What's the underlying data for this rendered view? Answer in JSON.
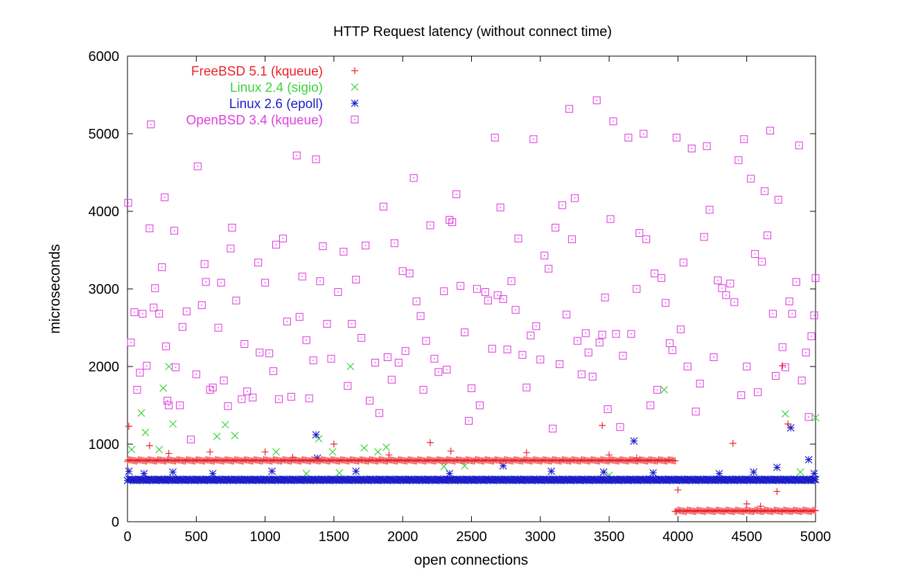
{
  "chart_data": {
    "type": "scatter",
    "title": "HTTP Request latency (without connect time)",
    "xlabel": "open connections",
    "ylabel": "microseconds",
    "xlim": [
      0,
      5000
    ],
    "ylim": [
      0,
      6000
    ],
    "xticks": [
      0,
      500,
      1000,
      1500,
      2000,
      2500,
      3000,
      3500,
      4000,
      4500,
      5000
    ],
    "yticks": [
      0,
      1000,
      2000,
      3000,
      4000,
      5000,
      6000
    ],
    "grid": false,
    "legend_position": "top-left",
    "series": [
      {
        "name": "FreeBSD 5.1 (kqueue)",
        "color": "#e8232a",
        "marker": "plus",
        "baseline_segments": [
          {
            "x_from": 0,
            "x_to": 3980,
            "y": 790
          },
          {
            "x_from": 3980,
            "x_to": 5000,
            "y": 140
          }
        ],
        "points": [
          [
            10,
            1230
          ],
          [
            160,
            980
          ],
          [
            300,
            880
          ],
          [
            600,
            900
          ],
          [
            1000,
            900
          ],
          [
            1200,
            830
          ],
          [
            1500,
            1000
          ],
          [
            1900,
            860
          ],
          [
            2200,
            1020
          ],
          [
            2350,
            910
          ],
          [
            2900,
            890
          ],
          [
            3450,
            1240
          ],
          [
            3500,
            860
          ],
          [
            3700,
            820
          ],
          [
            4000,
            410
          ],
          [
            4400,
            1010
          ],
          [
            4500,
            230
          ],
          [
            4600,
            200
          ],
          [
            4720,
            390
          ],
          [
            4760,
            2010
          ],
          [
            4800,
            1260
          ]
        ]
      },
      {
        "name": "Linux 2.4 (sigio)",
        "color": "#3ad33a",
        "marker": "cross",
        "baseline_segments": [
          {
            "x_from": 0,
            "x_to": 5000,
            "y": 540
          }
        ],
        "points": [
          [
            30,
            930
          ],
          [
            100,
            1400
          ],
          [
            130,
            1150
          ],
          [
            230,
            930
          ],
          [
            260,
            1720
          ],
          [
            300,
            2000
          ],
          [
            330,
            1260
          ],
          [
            650,
            1100
          ],
          [
            710,
            1250
          ],
          [
            780,
            1110
          ],
          [
            1080,
            900
          ],
          [
            1300,
            620
          ],
          [
            1390,
            1070
          ],
          [
            1490,
            900
          ],
          [
            1540,
            630
          ],
          [
            1620,
            2000
          ],
          [
            1720,
            950
          ],
          [
            1820,
            900
          ],
          [
            1880,
            960
          ],
          [
            2300,
            710
          ],
          [
            2450,
            720
          ],
          [
            3500,
            600
          ],
          [
            3900,
            1700
          ],
          [
            4780,
            1390
          ],
          [
            4890,
            640
          ],
          [
            5000,
            1340
          ]
        ]
      },
      {
        "name": "Linux 2.6 (epoll)",
        "color": "#1c1ccc",
        "marker": "star",
        "baseline_segments": [
          {
            "x_from": 0,
            "x_to": 5000,
            "y": 540
          }
        ],
        "points": [
          [
            10,
            650
          ],
          [
            120,
            620
          ],
          [
            330,
            640
          ],
          [
            620,
            620
          ],
          [
            1050,
            650
          ],
          [
            1370,
            1120
          ],
          [
            1380,
            820
          ],
          [
            1660,
            650
          ],
          [
            2340,
            620
          ],
          [
            2730,
            720
          ],
          [
            3080,
            650
          ],
          [
            3460,
            640
          ],
          [
            3680,
            1040
          ],
          [
            3820,
            630
          ],
          [
            4300,
            620
          ],
          [
            4550,
            640
          ],
          [
            4720,
            700
          ],
          [
            4820,
            1210
          ],
          [
            4950,
            800
          ],
          [
            4990,
            620
          ]
        ]
      },
      {
        "name": "OpenBSD 3.4 (kqueue)",
        "color": "#e040e0",
        "marker": "square",
        "points": [
          [
            5,
            4110
          ],
          [
            25,
            2310
          ],
          [
            50,
            2700
          ],
          [
            70,
            1700
          ],
          [
            90,
            1920
          ],
          [
            110,
            2680
          ],
          [
            140,
            2010
          ],
          [
            160,
            3780
          ],
          [
            170,
            5120
          ],
          [
            190,
            2760
          ],
          [
            200,
            3010
          ],
          [
            230,
            2680
          ],
          [
            250,
            3280
          ],
          [
            270,
            4180
          ],
          [
            280,
            2260
          ],
          [
            290,
            1560
          ],
          [
            300,
            1500
          ],
          [
            340,
            3750
          ],
          [
            350,
            1990
          ],
          [
            380,
            1500
          ],
          [
            400,
            2510
          ],
          [
            430,
            2710
          ],
          [
            460,
            1060
          ],
          [
            500,
            1900
          ],
          [
            510,
            4580
          ],
          [
            540,
            2790
          ],
          [
            560,
            3320
          ],
          [
            570,
            3090
          ],
          [
            600,
            1700
          ],
          [
            620,
            1730
          ],
          [
            660,
            2500
          ],
          [
            680,
            3080
          ],
          [
            700,
            1820
          ],
          [
            730,
            1490
          ],
          [
            750,
            3520
          ],
          [
            760,
            3790
          ],
          [
            790,
            2850
          ],
          [
            830,
            1580
          ],
          [
            850,
            2290
          ],
          [
            870,
            1680
          ],
          [
            910,
            1600
          ],
          [
            950,
            3340
          ],
          [
            960,
            2180
          ],
          [
            1000,
            3080
          ],
          [
            1030,
            2170
          ],
          [
            1060,
            1940
          ],
          [
            1080,
            3570
          ],
          [
            1100,
            1580
          ],
          [
            1130,
            3650
          ],
          [
            1160,
            2580
          ],
          [
            1190,
            1610
          ],
          [
            1230,
            4720
          ],
          [
            1250,
            2640
          ],
          [
            1270,
            3160
          ],
          [
            1300,
            2340
          ],
          [
            1320,
            1590
          ],
          [
            1350,
            2080
          ],
          [
            1370,
            4670
          ],
          [
            1400,
            3100
          ],
          [
            1420,
            3550
          ],
          [
            1450,
            2550
          ],
          [
            1480,
            2100
          ],
          [
            1530,
            2960
          ],
          [
            1570,
            3480
          ],
          [
            1600,
            1750
          ],
          [
            1630,
            2550
          ],
          [
            1660,
            3120
          ],
          [
            1700,
            2370
          ],
          [
            1730,
            3560
          ],
          [
            1760,
            1560
          ],
          [
            1800,
            2050
          ],
          [
            1830,
            1400
          ],
          [
            1860,
            4060
          ],
          [
            1890,
            2120
          ],
          [
            1920,
            1830
          ],
          [
            1940,
            3590
          ],
          [
            1970,
            2050
          ],
          [
            2000,
            3230
          ],
          [
            2020,
            2200
          ],
          [
            2050,
            3200
          ],
          [
            2080,
            4430
          ],
          [
            2100,
            2840
          ],
          [
            2130,
            2650
          ],
          [
            2150,
            1700
          ],
          [
            2170,
            2330
          ],
          [
            2200,
            3820
          ],
          [
            2230,
            2100
          ],
          [
            2260,
            1930
          ],
          [
            2300,
            2970
          ],
          [
            2320,
            1960
          ],
          [
            2340,
            3890
          ],
          [
            2360,
            3860
          ],
          [
            2390,
            4220
          ],
          [
            2420,
            3040
          ],
          [
            2450,
            2440
          ],
          [
            2480,
            1300
          ],
          [
            2500,
            1720
          ],
          [
            2540,
            3000
          ],
          [
            2560,
            1500
          ],
          [
            2600,
            2960
          ],
          [
            2620,
            2850
          ],
          [
            2650,
            2230
          ],
          [
            2670,
            4950
          ],
          [
            2690,
            2920
          ],
          [
            2710,
            4050
          ],
          [
            2730,
            2870
          ],
          [
            2760,
            2220
          ],
          [
            2790,
            3100
          ],
          [
            2820,
            2730
          ],
          [
            2840,
            3650
          ],
          [
            2870,
            2150
          ],
          [
            2900,
            1730
          ],
          [
            2930,
            2400
          ],
          [
            2950,
            4930
          ],
          [
            2970,
            2520
          ],
          [
            3000,
            2090
          ],
          [
            3030,
            3430
          ],
          [
            3060,
            3260
          ],
          [
            3090,
            1200
          ],
          [
            3110,
            3790
          ],
          [
            3140,
            2030
          ],
          [
            3160,
            4080
          ],
          [
            3190,
            2670
          ],
          [
            3210,
            5320
          ],
          [
            3230,
            3640
          ],
          [
            3250,
            4170
          ],
          [
            3270,
            2330
          ],
          [
            3300,
            1900
          ],
          [
            3330,
            2430
          ],
          [
            3350,
            2180
          ],
          [
            3380,
            1870
          ],
          [
            3410,
            5430
          ],
          [
            3430,
            2310
          ],
          [
            3450,
            2410
          ],
          [
            3470,
            2890
          ],
          [
            3490,
            1450
          ],
          [
            3510,
            3900
          ],
          [
            3530,
            5160
          ],
          [
            3550,
            2420
          ],
          [
            3580,
            1220
          ],
          [
            3600,
            2140
          ],
          [
            3640,
            4950
          ],
          [
            3660,
            2420
          ],
          [
            3700,
            3000
          ],
          [
            3720,
            3720
          ],
          [
            3750,
            5000
          ],
          [
            3770,
            3640
          ],
          [
            3800,
            1500
          ],
          [
            3830,
            3200
          ],
          [
            3850,
            1700
          ],
          [
            3880,
            3140
          ],
          [
            3910,
            2820
          ],
          [
            3940,
            2300
          ],
          [
            3960,
            2210
          ],
          [
            3990,
            4950
          ],
          [
            4020,
            2480
          ],
          [
            4040,
            3340
          ],
          [
            4070,
            2000
          ],
          [
            4100,
            4810
          ],
          [
            4130,
            1420
          ],
          [
            4160,
            1780
          ],
          [
            4190,
            3670
          ],
          [
            4210,
            4840
          ],
          [
            4230,
            4020
          ],
          [
            4260,
            2120
          ],
          [
            4290,
            3110
          ],
          [
            4320,
            3010
          ],
          [
            4350,
            2920
          ],
          [
            4380,
            3070
          ],
          [
            4410,
            2830
          ],
          [
            4440,
            4660
          ],
          [
            4460,
            1630
          ],
          [
            4480,
            4930
          ],
          [
            4500,
            2000
          ],
          [
            4530,
            4420
          ],
          [
            4560,
            3450
          ],
          [
            4580,
            1670
          ],
          [
            4610,
            3350
          ],
          [
            4630,
            4260
          ],
          [
            4650,
            3690
          ],
          [
            4670,
            5040
          ],
          [
            4690,
            2680
          ],
          [
            4710,
            1880
          ],
          [
            4730,
            4150
          ],
          [
            4760,
            2250
          ],
          [
            4780,
            1990
          ],
          [
            4810,
            2840
          ],
          [
            4830,
            2680
          ],
          [
            4860,
            3090
          ],
          [
            4880,
            4850
          ],
          [
            4900,
            1820
          ],
          [
            4930,
            2180
          ],
          [
            4950,
            1350
          ],
          [
            4970,
            2390
          ],
          [
            4990,
            2660
          ],
          [
            5000,
            3140
          ]
        ]
      }
    ]
  }
}
